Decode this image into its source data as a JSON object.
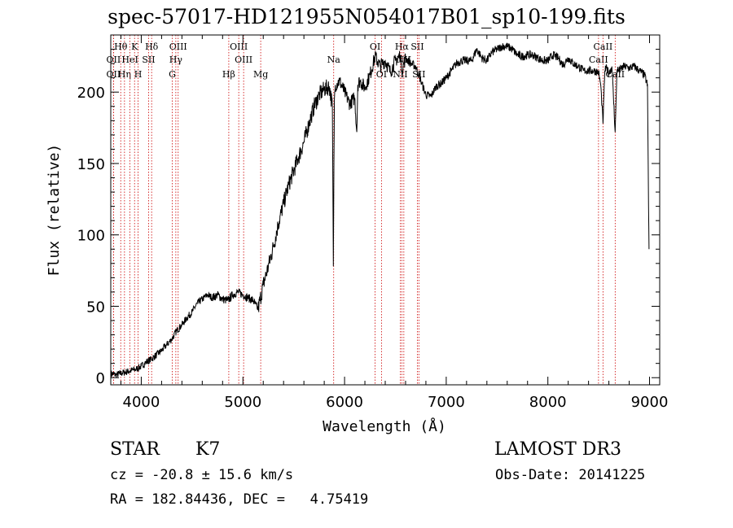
{
  "chart_data": {
    "type": "line",
    "title": "spec-57017-HD121955N054017B01_sp10-199.fits",
    "xlabel": "Wavelength (Å)",
    "ylabel": "Flux (relative)",
    "xlim": [
      3700,
      9100
    ],
    "ylim": [
      -5,
      240
    ],
    "xticks": [
      4000,
      5000,
      6000,
      7000,
      8000,
      9000
    ],
    "yticks": [
      0,
      50,
      100,
      150,
      200
    ],
    "grid": false,
    "colors": {
      "spectrum": "#000000",
      "line_marker": "#cc0000"
    },
    "series": [
      {
        "x": [
          3700,
          3750,
          3800,
          3850,
          3900,
          3950,
          4000,
          4050,
          4100,
          4150,
          4200,
          4250,
          4300,
          4350,
          4400,
          4450,
          4500,
          4550,
          4600,
          4650,
          4700,
          4750,
          4800,
          4850,
          4900,
          4950,
          5000,
          5050,
          5100,
          5150,
          5200,
          5250,
          5300,
          5350,
          5400,
          5450,
          5500,
          5550,
          5600,
          5650,
          5700,
          5750,
          5800,
          5850,
          5880,
          5890,
          5895,
          5900,
          5910,
          5950,
          6000,
          6050,
          6100,
          6120,
          6130,
          6150,
          6200,
          6250,
          6300,
          6350,
          6400,
          6450,
          6500,
          6550,
          6563,
          6600,
          6650,
          6700,
          6750,
          6800,
          6850,
          6900,
          6950,
          7000,
          7050,
          7100,
          7150,
          7200,
          7250,
          7300,
          7350,
          7400,
          7450,
          7500,
          7550,
          7600,
          7650,
          7700,
          7750,
          7800,
          7850,
          7900,
          7950,
          8000,
          8050,
          8100,
          8150,
          8200,
          8250,
          8300,
          8350,
          8400,
          8450,
          8498,
          8520,
          8542,
          8560,
          8580,
          8600,
          8630,
          8662,
          8680,
          8700,
          8750,
          8800,
          8850,
          8900,
          8950,
          8980,
          8990,
          8995
        ],
        "y": [
          3,
          2,
          3,
          4,
          5,
          6,
          8,
          11,
          13,
          16,
          19,
          23,
          27,
          33,
          37,
          42,
          46,
          52,
          55,
          58,
          56,
          58,
          55,
          54,
          58,
          60,
          58,
          56,
          54,
          48,
          65,
          78,
          92,
          108,
          122,
          135,
          145,
          155,
          165,
          178,
          190,
          198,
          202,
          204,
          190,
          78,
          150,
          195,
          205,
          208,
          200,
          192,
          196,
          172,
          205,
          208,
          203,
          212,
          225,
          218,
          222,
          214,
          222,
          226,
          215,
          224,
          220,
          218,
          208,
          198,
          197,
          204,
          206,
          210,
          215,
          220,
          222,
          222,
          222,
          230,
          224,
          222,
          228,
          230,
          232,
          232,
          230,
          226,
          225,
          226,
          226,
          224,
          222,
          222,
          226,
          224,
          219,
          224,
          220,
          218,
          215,
          215,
          215,
          214,
          205,
          178,
          215,
          217,
          213,
          218,
          172,
          216,
          215,
          218,
          217,
          218,
          215,
          212,
          205,
          120,
          90
        ]
      }
    ],
    "line_markers": [
      {
        "label": "Hθ",
        "x": 3798,
        "row": 1
      },
      {
        "label": "OII",
        "x": 3727,
        "row": 2
      },
      {
        "label": "OII",
        "x": 3727,
        "row": 3
      },
      {
        "label": "Hη",
        "x": 3835,
        "row": 3
      },
      {
        "label": "HeI",
        "x": 3889,
        "row": 2
      },
      {
        "label": "K",
        "x": 3934,
        "row": 1
      },
      {
        "label": "H",
        "x": 3969,
        "row": 3
      },
      {
        "label": "SII",
        "x": 4072,
        "row": 2
      },
      {
        "label": "Hδ",
        "x": 4102,
        "row": 1
      },
      {
        "label": "OIII",
        "x": 4363,
        "row": 1
      },
      {
        "label": "Hγ",
        "x": 4340,
        "row": 2
      },
      {
        "label": "G",
        "x": 4305,
        "row": 3
      },
      {
        "label": "Hβ",
        "x": 4861,
        "row": 3
      },
      {
        "label": "OIII",
        "x": 4959,
        "row": 1
      },
      {
        "label": "OIII",
        "x": 5007,
        "row": 2
      },
      {
        "label": "Mg",
        "x": 5175,
        "row": 3
      },
      {
        "label": "Na",
        "x": 5893,
        "row": 2
      },
      {
        "label": "OI",
        "x": 6300,
        "row": 1
      },
      {
        "label": "OI",
        "x": 6363,
        "row": 3
      },
      {
        "label": "Hα",
        "x": 6563,
        "row": 1
      },
      {
        "label": "NII",
        "x": 6548,
        "row": 3
      },
      {
        "label": "NII",
        "x": 6583,
        "row": 2
      },
      {
        "label": "SII",
        "x": 6716,
        "row": 1
      },
      {
        "label": "SII",
        "x": 6731,
        "row": 3
      },
      {
        "label": "CaII",
        "x": 8498,
        "row": 2
      },
      {
        "label": "CaII",
        "x": 8542,
        "row": 1
      },
      {
        "label": "CaII",
        "x": 8662,
        "row": 3
      }
    ]
  },
  "info": {
    "object_class": "STAR",
    "subclass": "K7",
    "survey": "LAMOST DR3",
    "redshift": "cz = -20.8 ± 15.6 km/s",
    "obs_date": "Obs-Date: 20141225",
    "coords": "RA = 182.84436, DEC =   4.75419"
  }
}
